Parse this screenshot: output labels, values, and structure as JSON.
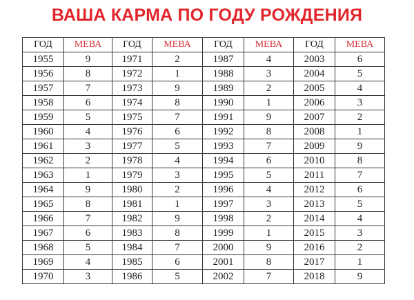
{
  "title": "ВАША КАРМА ПО ГОДУ РОЖДЕНИЯ",
  "accent_color": "#e2252b",
  "table": {
    "headers": [
      "ГОД",
      "МЕВА",
      "ГОД",
      "МЕВА",
      "ГОД",
      "МЕВА",
      "ГОД",
      "МЕВА"
    ],
    "rows": [
      [
        "1955",
        "9",
        "1971",
        "2",
        "1987",
        "4",
        "2003",
        "6"
      ],
      [
        "1956",
        "8",
        "1972",
        "1",
        "1988",
        "3",
        "2004",
        "5"
      ],
      [
        "1957",
        "7",
        "1973",
        "9",
        "1989",
        "2",
        "2005",
        "4"
      ],
      [
        "1958",
        "6",
        "1974",
        "8",
        "1990",
        "1",
        "2006",
        "3"
      ],
      [
        "1959",
        "5",
        "1975",
        "7",
        "1991",
        "9",
        "2007",
        "2"
      ],
      [
        "1960",
        "4",
        "1976",
        "6",
        "1992",
        "8",
        "2008",
        "1"
      ],
      [
        "1961",
        "3",
        "1977",
        "5",
        "1993",
        "7",
        "2009",
        "9"
      ],
      [
        "1962",
        "2",
        "1978",
        "4",
        "1994",
        "6",
        "2010",
        "8"
      ],
      [
        "1963",
        "1",
        "1979",
        "3",
        "1995",
        "5",
        "2011",
        "7"
      ],
      [
        "1964",
        "9",
        "1980",
        "2",
        "1996",
        "4",
        "2012",
        "6"
      ],
      [
        "1965",
        "8",
        "1981",
        "1",
        "1997",
        "3",
        "2013",
        "5"
      ],
      [
        "1966",
        "7",
        "1982",
        "9",
        "1998",
        "2",
        "2014",
        "4"
      ],
      [
        "1967",
        "6",
        "1983",
        "8",
        "1999",
        "1",
        "2015",
        "3"
      ],
      [
        "1968",
        "5",
        "1984",
        "7",
        "2000",
        "9",
        "2016",
        "2"
      ],
      [
        "1969",
        "4",
        "1985",
        "6",
        "2001",
        "8",
        "2017",
        "1"
      ],
      [
        "1970",
        "3",
        "1986",
        "5",
        "2002",
        "7",
        "2018",
        "9"
      ]
    ]
  }
}
